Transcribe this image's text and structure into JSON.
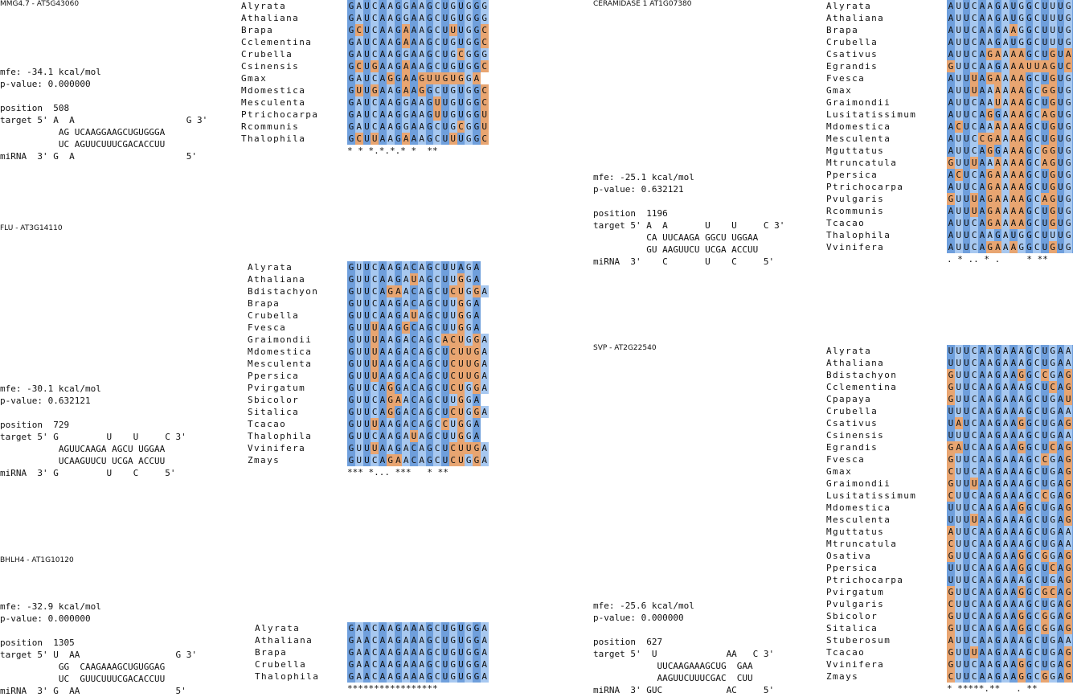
{
  "colors": {
    "dark_blue": "#6f9fdc",
    "light_blue": "#a7c8f0",
    "orange": "#e8a571",
    "light_orange": "#f5cfae",
    "white": "#ffffff"
  },
  "panels": [
    {
      "title": "MMG4.7 - AT5G43060",
      "info": "\n\n\n\n\nmfe: -34.1 kcal/mol\np-value: 0.000000\n\nposition  508\ntarget 5' A  A                     G 3'\n           AG UCAAGGAAGCUGUGGGA\n           UC AGUUCUUUCGACACCUU\nmiRNA  3' G  A                     5'",
      "species": [
        "Alyrata",
        "Athaliana",
        "Brapa",
        "Cclementina",
        "Crubella",
        "Csinensis",
        "Gmax",
        "Mdomestica",
        "Mesculenta",
        "Ptrichocarpa",
        "Rcommunis",
        "Thalophila"
      ],
      "sequences": [
        "GAUCAAGGAAGCUGUGGG",
        "GAUCAAGGAAGCUGUGGG",
        "GCUCAAGAAAGCUUUGGC",
        "GAUCAAGAAAGCUGUGGC",
        "GAUCAAGGAAGCUGCGGG",
        "GCUGAAGAAAGCUGUGGC",
        "GAUCAGGAAGUUGUGGA",
        "GUUGAAGAAGGCUGUGGC",
        "GAUCAAGGAAGUUGUGGC",
        "GAUCAAGGAAGUUGUGGU",
        "GAUCAAGGAAGCUGCGGU",
        "GCUUAAGAAAGCUUUGGC"
      ],
      "conservation": "* * *.*.*.* *  **"
    },
    {
      "title": "FLU - AT3G14110",
      "info": "\n\n\n\n\n\n\n\n\n\n\n\n\nmfe: -30.1 kcal/mol\np-value: 0.632121\n\nposition  729\ntarget 5' G         U    U     C 3'\n           AGUUCAAGA AGCU UGGAA\n           UCAAGUUCU UCGA ACCUU\nmiRNA  3' G         U    C     5'",
      "species": [
        "Alyrata",
        "Athaliana",
        "Bdistachyon",
        "Brapa",
        "Crubella",
        "Fvesca",
        "Graimondii",
        "Mdomestica",
        "Mesculenta",
        "Ppersica",
        "Pvirgatum",
        "Sbicolor",
        "Sitalica",
        "Tcacao",
        "Thalophila",
        "Vvinifera",
        "Zmays"
      ],
      "sequences": [
        "GUUCAAGACAGCUUAGA",
        "GUUCAAGAUAGCUUGGA",
        "GUUCAGAACAGCUCUGGA",
        "GUUCAAGACAGCUUGGA",
        "GUUCAAGAUAGCUUGGA",
        "GUUUAAGGCAGCUUGGA",
        "GUUUAAGACAGCACUGGA",
        "GUUUAAGACAGCUCUUGA",
        "GUUUAAGACAGCUCUUGA",
        "GUUUAAGACAGCUCUUGA",
        "GUUCAGGACAGCUCUGGA",
        "GUUCAGAACAGCUUGGA",
        "GUUCAGGACAGCUCUGGA",
        "GUUUAAGACAGCCUGGA",
        "GUUCAAGAUAGCUUGGA",
        "GUUUAAGACAGCUCUUGA",
        "GUUCAGAACAGCUCUGGA"
      ],
      "conservation": "*** *... ***   * **"
    },
    {
      "title": "BHLH4 - AT1G10120",
      "info": "\n\n\n\nmfe: -32.9 kcal/mol\np-value: 0.000000\n\nposition  1305\ntarget 5' U  AA                  G 3'\n           GG  CAAGAAAGCUGUGGAG\n           UC  GUUCUUUCGACACCUU\nmiRNA  3' G  AA                  5'",
      "species": [
        "Alyrata",
        "Athaliana",
        "Brapa",
        "Crubella",
        "Thalophila"
      ],
      "sequences": [
        "GAACAAGAAAGCUGUGGA",
        "GAACAAGAAAGCUGUGGA",
        "GAACAAGAAAGCUGUGGA",
        "GAACAAGAAAGCUGUGGA",
        "GAACAAGAAAGCUGUGGA"
      ],
      "conservation": "*****************"
    },
    {
      "title": "CERAMIDASE 1 AT1G07380",
      "info": "\n\n\n\n\n\n\n\n\n\n\n\n\n\nmfe: -25.1 kcal/mol\np-value: 0.632121\n\nposition  1196\ntarget 5' A  A       U    U     C 3'\n          CA UUCAAGA GGCU UGGAA\n          GU AAGUUCU UCGA ACCUU\nmiRNA  3'    C       U    C     5'",
      "species": [
        "Alyrata",
        "Athaliana",
        "Brapa",
        "Crubella",
        "Csativus",
        "Egrandis",
        "Fvesca",
        "Gmax",
        "Graimondii",
        "Lusitatissimum",
        "Mdomestica",
        "Mesculenta",
        "Mguttatus",
        "Mtruncatula",
        "Ppersica",
        "Ptrichocarpa",
        "Pvulgaris",
        "Rcommunis",
        "Tcacao",
        "Thalophila",
        "Vvinifera"
      ],
      "sequences": [
        "AUUCAAGAUGGCUUUGGA",
        "AUUCAAGAUGGCUUUGGA",
        "AUUCAAGAAGGCUUUGGA",
        "AUUCAAGAUGGCUUUGGA",
        "AUUCAGAAAAGCUGUAGA",
        "GUUCAAGAAAUUAGUCGA",
        "AUUUAGAAAAGCUGUGGA",
        "AUUUAAAAAAGCGGUGGA",
        "AUUCAAUAAAGCUGUGGA",
        "AUUCAGGAAAGCAGUGGA",
        "ACUCAAAAAAGCUGUGGA",
        "AUUCCGAAAAGCUGUGGA",
        "AUUCAGGAAAGCGGUGGA",
        "GUUUAAAAAAGCAGUGGA",
        "ACUCAGAAAAGCUGUGGA",
        "AUUCAGAAAAGCUGUGGA",
        "GUUUAGAAAAGCAGUGGA",
        "AUUUAGAAAAGCUGUGGA",
        "AUUCAGAAAAGCUGUGGA",
        "AUUCAAGAUGGCUUUGGA",
        "AUUCAGAAAGGCUGUGGA"
      ],
      "conservation": ". * .. * .     * **"
    },
    {
      "title": "SVP - AT2G22540",
      "info": "\n\n\n\n\n\n\n\n\n\n\n\n\n\n\n\n\n\n\n\n\nmfe: -25.6 kcal/mol\np-value: 0.000000\n\nposition  627\ntarget 5'  U             AA   C 3'\n            UUCAAGAAAGCUG  GAA\n            AAGUUCUUUCGAC  CUU\nmiRNA  3' GUC            AC     5'",
      "species": [
        "Alyrata",
        "Athaliana",
        "Bdistachyon",
        "Cclementina",
        "Cpapaya",
        "Crubella",
        "Csativus",
        "Csinensis",
        "Egrandis",
        "Fvesca",
        "Gmax",
        "Graimondii",
        "Lusitatissimum",
        "Mdomestica",
        "Mesculenta",
        "Mguttatus",
        "Mtruncatula",
        "Osativa",
        "Ppersica",
        "Ptrichocarpa",
        "Pvirgatum",
        "Pvulgaris",
        "Sbicolor",
        "Sitalica",
        "Stuberosum",
        "Tcacao",
        "Vvinifera",
        "Zmays"
      ],
      "sequences": [
        "UUUCAAGAAAGCUGAAGA",
        "UUUCAAGAAAGCUGAAGA",
        "GUUCAAGAAGGCCGAGGA",
        "GUUCAAGAAAGCUCAGGA",
        "GUUCAAGAAAGCUGAUGA",
        "UUUCAAGAAAGCUGAAGA",
        "UAUCAAGAAGGCUGAGGA",
        "UUUCAAGAAAGCUGAAGA",
        "GAUCAAGAAGGCUCAGGA",
        "GUUCAAGAAAGCCGAGGA",
        "CUUCAAGAAAGCUGAGGA",
        "GUUUAAGAAAGCUGAGGA",
        "CUUCAAGAAAGCCGAGGA",
        "UUUCAAGAAGGCUGAGGA",
        "UUUUAAGAAAGCUGAGGA",
        "AUUCAAGAAAGCUGAAGA",
        "CUUCAAGAAAGCUGAAGA",
        "GUUCAAGAAGGCGGAGGA",
        "UUUCAAGAAGGCUCAGGA",
        "UUUCAAGAAAGCUGAGGA",
        "GUUCAAGAAGGCGCAGGA",
        "CUUCAAGAAAGCUGAGGA",
        "GUUCAAGAAGGCGGAGGA",
        "GUUCAAGAAGGCGGAGGA",
        "AUUCAAGAAAGCUGAAGA",
        "GUUUAAGAAAGCUGAGGA",
        "GUUCAAGAAGGCUGAGGA",
        "CUUCAAGAAGGCGGAGGA"
      ],
      "conservation": "* *****.**   . **"
    }
  ]
}
